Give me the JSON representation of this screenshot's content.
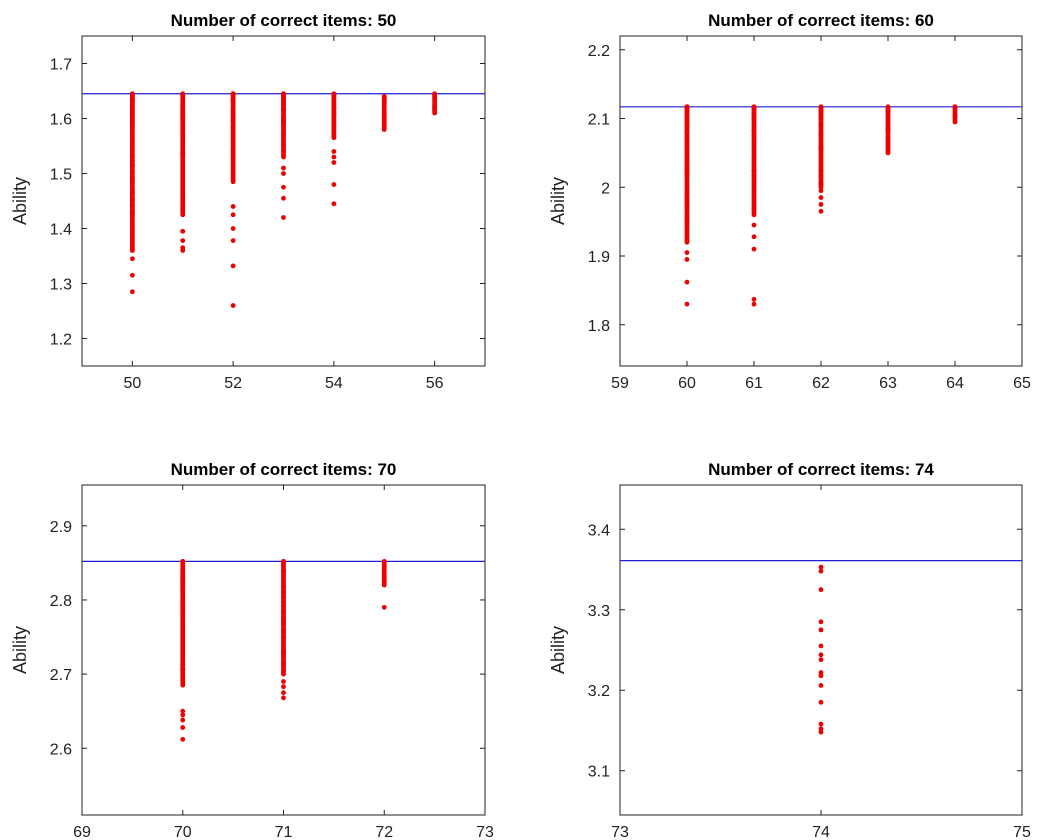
{
  "chart_data": [
    {
      "type": "scatter",
      "title": "Number of correct items: 50",
      "xlabel": "",
      "ylabel": "Ability",
      "xlim": [
        49,
        57
      ],
      "ylim": [
        1.15,
        1.75
      ],
      "xticks": [
        50,
        52,
        54,
        56
      ],
      "yticks": [
        1.2,
        1.3,
        1.4,
        1.5,
        1.6,
        1.7
      ],
      "xtick_labels": [
        "50",
        "52",
        "54",
        "56"
      ],
      "ytick_labels": [
        "1.2",
        "1.3",
        "1.4",
        "1.5",
        "1.6",
        "1.7"
      ],
      "reference_line": 1.645,
      "grid": false,
      "point_color": "#ee0000",
      "line_color": "#1f1fd6",
      "points": [
        {
          "x": 50,
          "min": 1.36,
          "max": 1.645,
          "outliers": [
            1.285,
            1.315,
            1.345
          ]
        },
        {
          "x": 51,
          "min": 1.425,
          "max": 1.645,
          "outliers": [
            1.36,
            1.365,
            1.378,
            1.395
          ]
        },
        {
          "x": 52,
          "min": 1.485,
          "max": 1.645,
          "outliers": [
            1.26,
            1.332,
            1.378,
            1.4,
            1.425,
            1.44
          ]
        },
        {
          "x": 53,
          "min": 1.53,
          "max": 1.645,
          "outliers": [
            1.42,
            1.455,
            1.475,
            1.5,
            1.51
          ]
        },
        {
          "x": 54,
          "min": 1.565,
          "max": 1.645,
          "outliers": [
            1.445,
            1.48,
            1.52,
            1.53,
            1.54
          ]
        },
        {
          "x": 55,
          "min": 1.58,
          "max": 1.64,
          "outliers": []
        },
        {
          "x": 56,
          "min": 1.61,
          "max": 1.645,
          "outliers": []
        }
      ]
    },
    {
      "type": "scatter",
      "title": "Number of correct items: 60",
      "xlabel": "",
      "ylabel": "Ability",
      "xlim": [
        59,
        65
      ],
      "ylim": [
        1.74,
        2.22
      ],
      "xticks": [
        59,
        60,
        61,
        62,
        63,
        64,
        65
      ],
      "yticks": [
        1.8,
        1.9,
        2.0,
        2.1,
        2.2
      ],
      "xtick_labels": [
        "59",
        "60",
        "61",
        "62",
        "63",
        "64",
        "65"
      ],
      "ytick_labels": [
        "1.8",
        "1.9",
        "2",
        "2.1",
        "2.2"
      ],
      "reference_line": 2.117,
      "grid": false,
      "point_color": "#ee0000",
      "line_color": "#1f1fd6",
      "points": [
        {
          "x": 60,
          "min": 1.92,
          "max": 2.117,
          "outliers": [
            1.83,
            1.862,
            1.895,
            1.905
          ]
        },
        {
          "x": 61,
          "min": 1.96,
          "max": 2.117,
          "outliers": [
            1.83,
            1.837,
            1.91,
            1.928,
            1.945
          ]
        },
        {
          "x": 62,
          "min": 2.0,
          "max": 2.117,
          "outliers": [
            1.965,
            1.975,
            1.985,
            1.995
          ]
        },
        {
          "x": 63,
          "min": 2.05,
          "max": 2.117,
          "outliers": []
        },
        {
          "x": 64,
          "min": 2.095,
          "max": 2.117,
          "outliers": []
        }
      ]
    },
    {
      "type": "scatter",
      "title": "Number of correct items: 70",
      "xlabel": "",
      "ylabel": "Ability",
      "xlim": [
        69,
        73
      ],
      "ylim": [
        2.51,
        2.955
      ],
      "xticks": [
        69,
        70,
        71,
        72,
        73
      ],
      "yticks": [
        2.6,
        2.7,
        2.8,
        2.9
      ],
      "xtick_labels": [
        "69",
        "70",
        "71",
        "72",
        "73"
      ],
      "ytick_labels": [
        "2.6",
        "2.7",
        "2.8",
        "2.9"
      ],
      "reference_line": 2.852,
      "grid": false,
      "point_color": "#ee0000",
      "line_color": "#1f1fd6",
      "points": [
        {
          "x": 70,
          "min": 2.685,
          "max": 2.852,
          "outliers": [
            2.612,
            2.628,
            2.638,
            2.645,
            2.65
          ]
        },
        {
          "x": 71,
          "min": 2.7,
          "max": 2.852,
          "outliers": [
            2.668,
            2.675,
            2.683,
            2.69
          ]
        },
        {
          "x": 72,
          "min": 2.82,
          "max": 2.852,
          "outliers": [
            2.79
          ]
        }
      ]
    },
    {
      "type": "scatter",
      "title": "Number of correct items: 74",
      "xlabel": "",
      "ylabel": "Ability",
      "xlim": [
        73,
        75
      ],
      "ylim": [
        3.045,
        3.455
      ],
      "xticks": [
        73,
        74,
        75
      ],
      "yticks": [
        3.1,
        3.2,
        3.3,
        3.4
      ],
      "xtick_labels": [
        "73",
        "74",
        "75"
      ],
      "ytick_labels": [
        "3.1",
        "3.2",
        "3.3",
        "3.4"
      ],
      "reference_line": 3.361,
      "grid": false,
      "point_color": "#ee0000",
      "line_color": "#1f1fd6",
      "points": [
        {
          "x": 74,
          "values": [
            3.148,
            3.152,
            3.158,
            3.185,
            3.206,
            3.218,
            3.222,
            3.238,
            3.244,
            3.255,
            3.275,
            3.285,
            3.325,
            3.348,
            3.353
          ]
        }
      ]
    }
  ]
}
